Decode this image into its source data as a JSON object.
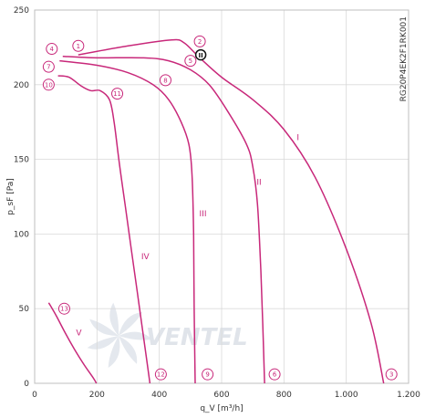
{
  "chart_data": {
    "type": "line",
    "xlabel": "q_V [m³/h]",
    "ylabel": "p_sF [Pa]",
    "xlim": [
      0,
      1200
    ],
    "ylim": [
      0,
      250
    ],
    "x_ticks": [
      0,
      200,
      400,
      600,
      800,
      1000,
      1200
    ],
    "x_tick_labels": [
      "0",
      "200",
      "400",
      "600",
      "800",
      "1.000",
      "1.200"
    ],
    "y_ticks": [
      0,
      50,
      100,
      150,
      200,
      250
    ],
    "y_tick_labels": [
      "0",
      "50",
      "100",
      "150",
      "200",
      "250"
    ],
    "grid": true,
    "model_label": "RG20P4EK2F1RK001",
    "watermark": "VENTEL",
    "colors": {
      "curve": "#c8287a",
      "grid": "#d9d9d9",
      "text": "#333333"
    },
    "series": [
      {
        "name": "I",
        "label_at": [
          845,
          163
        ],
        "points": [
          [
            140,
            220
          ],
          [
            300,
            226
          ],
          [
            440,
            230
          ],
          [
            480,
            228
          ],
          [
            530,
            218
          ],
          [
            600,
            205
          ],
          [
            700,
            190
          ],
          [
            800,
            170
          ],
          [
            900,
            138
          ],
          [
            1000,
            90
          ],
          [
            1080,
            40
          ],
          [
            1120,
            0
          ]
        ]
      },
      {
        "name": "II",
        "label_at": [
          720,
          133
        ],
        "points": [
          [
            90,
            219
          ],
          [
            200,
            218
          ],
          [
            350,
            218
          ],
          [
            430,
            216
          ],
          [
            500,
            210
          ],
          [
            560,
            200
          ],
          [
            620,
            182
          ],
          [
            680,
            160
          ],
          [
            700,
            145
          ],
          [
            715,
            120
          ],
          [
            725,
            80
          ],
          [
            732,
            40
          ],
          [
            738,
            0
          ]
        ]
      },
      {
        "name": "III",
        "label_at": [
          540,
          112
        ],
        "points": [
          [
            80,
            216
          ],
          [
            200,
            213
          ],
          [
            300,
            208
          ],
          [
            380,
            200
          ],
          [
            430,
            190
          ],
          [
            470,
            175
          ],
          [
            495,
            160
          ],
          [
            505,
            140
          ],
          [
            510,
            100
          ],
          [
            512,
            50
          ],
          [
            515,
            0
          ]
        ]
      },
      {
        "name": "IV",
        "label_at": [
          355,
          83
        ],
        "points": [
          [
            75,
            206
          ],
          [
            110,
            205
          ],
          [
            150,
            199
          ],
          [
            180,
            196
          ],
          [
            210,
            196
          ],
          [
            240,
            190
          ],
          [
            255,
            175
          ],
          [
            270,
            150
          ],
          [
            290,
            120
          ],
          [
            310,
            90
          ],
          [
            330,
            60
          ],
          [
            350,
            30
          ],
          [
            370,
            0
          ]
        ]
      },
      {
        "name": "V",
        "label_at": [
          142,
          32
        ],
        "points": [
          [
            45,
            54
          ],
          [
            70,
            45
          ],
          [
            100,
            33
          ],
          [
            130,
            22
          ],
          [
            160,
            12
          ],
          [
            190,
            3
          ],
          [
            198,
            0
          ]
        ]
      }
    ],
    "markers": [
      {
        "label": "1",
        "x": 140,
        "y": 226
      },
      {
        "label": "2",
        "x": 530,
        "y": 229
      },
      {
        "label": "3",
        "x": 1145,
        "y": 6
      },
      {
        "label": "4",
        "x": 55,
        "y": 224
      },
      {
        "label": "5",
        "x": 500,
        "y": 216
      },
      {
        "label": "6",
        "x": 770,
        "y": 6
      },
      {
        "label": "7",
        "x": 45,
        "y": 212
      },
      {
        "label": "8",
        "x": 420,
        "y": 203
      },
      {
        "label": "9",
        "x": 555,
        "y": 6
      },
      {
        "label": "10",
        "x": 45,
        "y": 200
      },
      {
        "label": "11",
        "x": 265,
        "y": 194
      },
      {
        "label": "12",
        "x": 405,
        "y": 6
      },
      {
        "label": "13",
        "x": 95,
        "y": 50
      }
    ],
    "operating_point": {
      "label": "II",
      "x": 533,
      "y": 220
    }
  }
}
